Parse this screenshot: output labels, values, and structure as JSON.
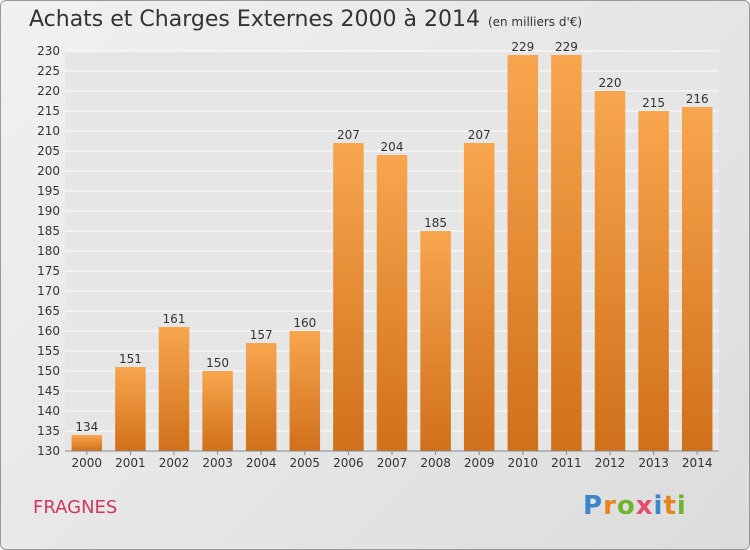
{
  "header": {
    "title": "Achats et Charges Externes 2000 à 2014",
    "unit": "(en milliers d'€)"
  },
  "footer": {
    "place": "FRAGNES",
    "logo": "Proxiti",
    "logo_colors": [
      "#3a86c8",
      "#e5851c",
      "#6fb52e",
      "#e24e6b",
      "#3a86c8",
      "#e5851c",
      "#6fb52e"
    ]
  },
  "colors": {
    "bar_top": "#f8a64e",
    "bar_bottom": "#d0701a",
    "grid": "#ffffff",
    "plot_bg": "#e6e6e6"
  },
  "chart_data": {
    "type": "bar",
    "title": "Achats et Charges Externes 2000 à 2014",
    "categories": [
      "2000",
      "2001",
      "2002",
      "2003",
      "2004",
      "2005",
      "2006",
      "2007",
      "2008",
      "2009",
      "2010",
      "2011",
      "2012",
      "2013",
      "2014"
    ],
    "values": [
      134,
      151,
      161,
      150,
      157,
      160,
      207,
      204,
      185,
      207,
      229,
      229,
      220,
      215,
      216
    ],
    "ylim": [
      130,
      230
    ],
    "yticks": [
      130,
      135,
      140,
      145,
      150,
      155,
      160,
      165,
      170,
      175,
      180,
      185,
      190,
      195,
      200,
      205,
      210,
      215,
      220,
      225,
      230
    ],
    "grid": true,
    "xlabel": "",
    "ylabel": ""
  }
}
